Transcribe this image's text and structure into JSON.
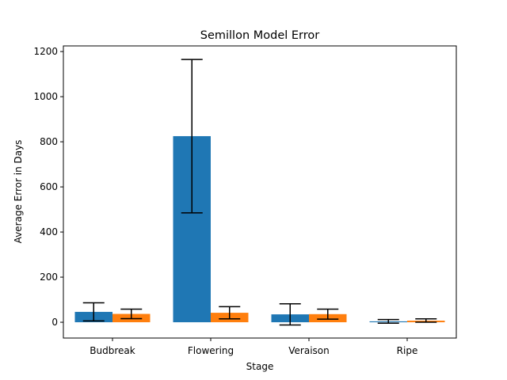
{
  "chart_data": {
    "type": "bar",
    "title": "Semillon Model Error",
    "xlabel": "Stage",
    "ylabel": "Average Error in Days",
    "categories": [
      "Budbreak",
      "Flowering",
      "Veraison",
      "Ripe"
    ],
    "ylim": [
      -70,
      1225
    ],
    "yticks": [
      0,
      200,
      400,
      600,
      800,
      1000,
      1200
    ],
    "legend": "none",
    "grid": false,
    "error_bars": true,
    "series": [
      {
        "color": "#1f77b4",
        "values": [
          46,
          825,
          35,
          4
        ],
        "error_low": [
          6,
          485,
          -12,
          -4
        ],
        "error_high": [
          86,
          1165,
          82,
          12
        ]
      },
      {
        "color": "#ff7f0e",
        "values": [
          37,
          42,
          36,
          7
        ],
        "error_low": [
          16,
          15,
          14,
          0
        ],
        "error_high": [
          58,
          69,
          58,
          15
        ]
      }
    ]
  }
}
